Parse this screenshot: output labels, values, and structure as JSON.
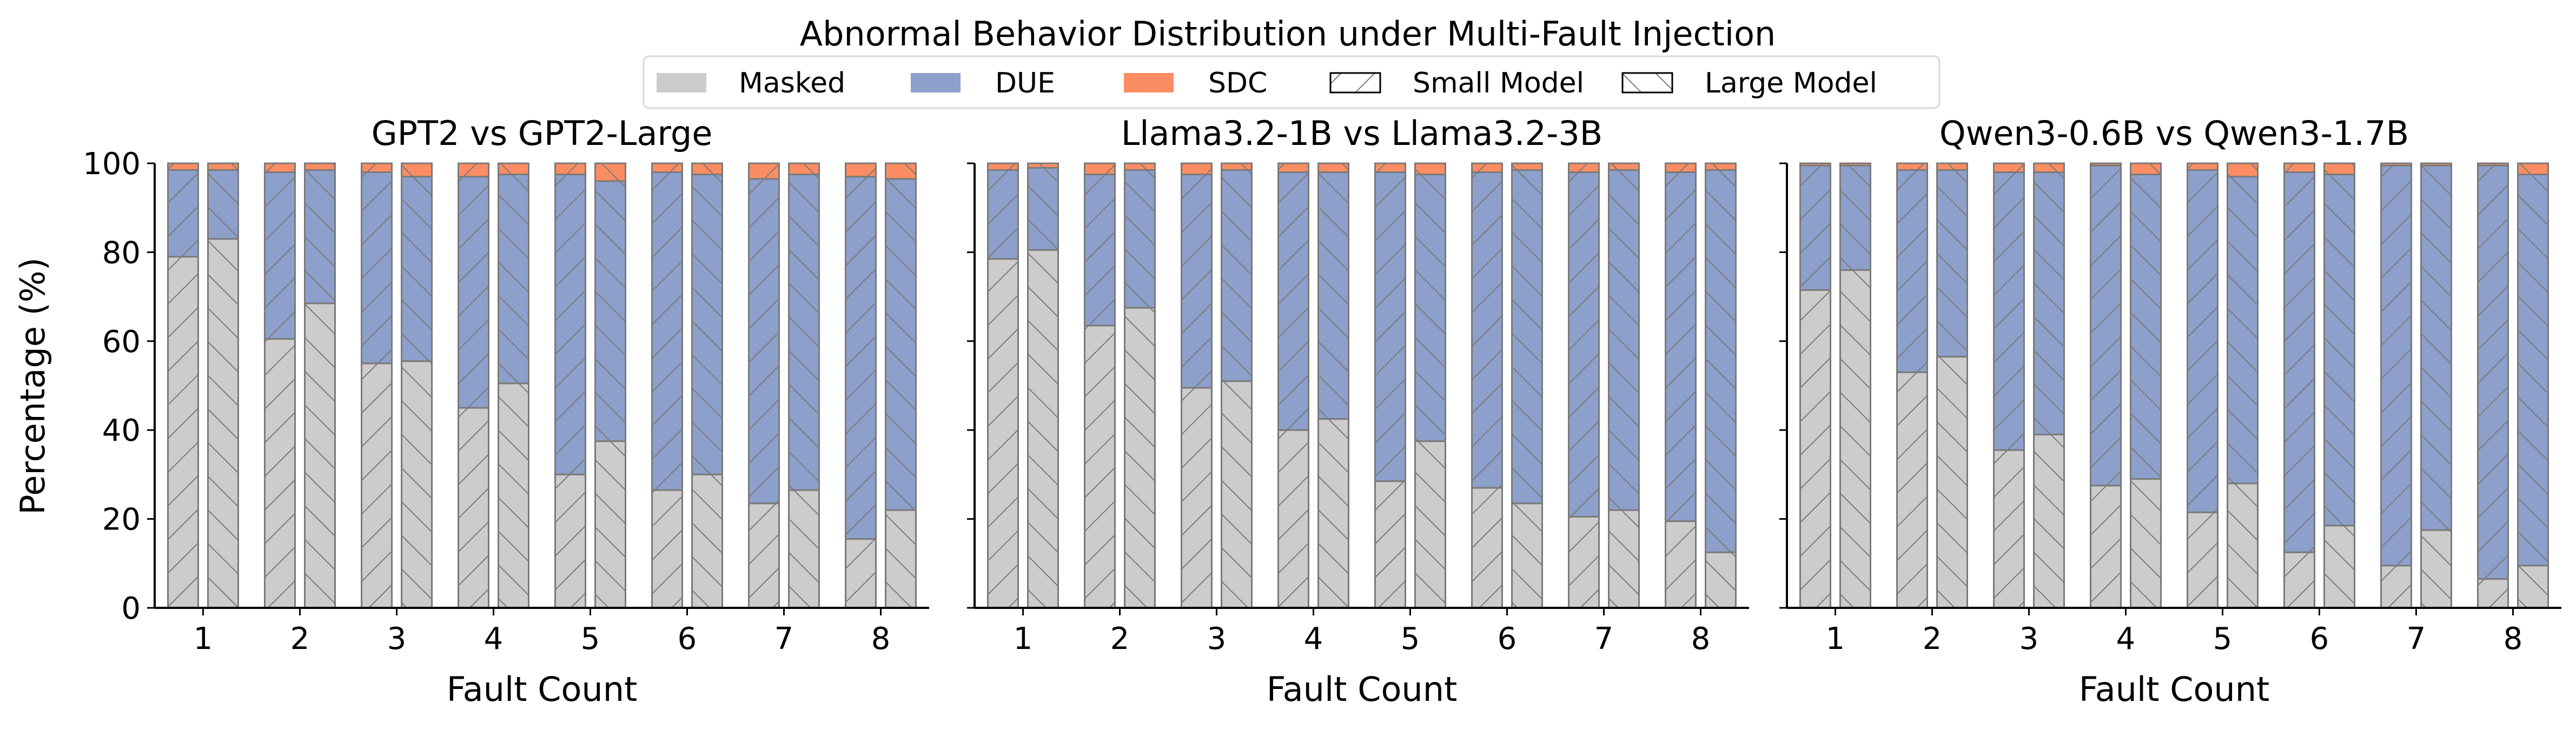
{
  "chart_data": {
    "type": "bar",
    "stacked": true,
    "grouped": true,
    "title": "Abnormal Behavior Distribution under Multi-Fault Injection",
    "ylabel": "Percentage (%)",
    "xlabel": "Fault Count",
    "ylim": [
      0,
      100
    ],
    "yticks": [
      0,
      20,
      40,
      60,
      80,
      100
    ],
    "categories": [
      "1",
      "2",
      "3",
      "4",
      "5",
      "6",
      "7",
      "8"
    ],
    "legend": {
      "position": "top-center",
      "entries": [
        {
          "label": "Masked",
          "kind": "color",
          "color": "#cccccc"
        },
        {
          "label": "DUE",
          "kind": "color",
          "color": "#8da0cb"
        },
        {
          "label": "SDC",
          "kind": "color",
          "color": "#fc8d62"
        },
        {
          "label": "Small Model",
          "kind": "hatch",
          "hatch": "forward"
        },
        {
          "label": "Large Model",
          "kind": "hatch",
          "hatch": "backward"
        }
      ]
    },
    "colors": {
      "masked": "#cccccc",
      "due": "#8da0cb",
      "sdc": "#fc8d62",
      "edge": "#7a7a7a",
      "hatch": "#7a7a7a"
    },
    "panels": [
      {
        "title": "GPT2 vs GPT2-Large",
        "small": {
          "masked": [
            79,
            60.5,
            55,
            45,
            30,
            26.5,
            23.5,
            15.5
          ],
          "due": [
            19.5,
            37.5,
            43,
            52,
            67.5,
            71.5,
            73,
            81.5
          ],
          "sdc": [
            1.5,
            2,
            2,
            3,
            2.5,
            2,
            3.5,
            3
          ]
        },
        "large": {
          "masked": [
            83,
            68.5,
            55.5,
            50.5,
            37.5,
            30,
            26.5,
            22
          ],
          "due": [
            15.5,
            30,
            41.5,
            47,
            58.5,
            67.5,
            71,
            74.5
          ],
          "sdc": [
            1.5,
            1.5,
            3,
            2.5,
            4,
            2.5,
            2.5,
            3.5
          ]
        }
      },
      {
        "title": "Llama3.2-1B vs Llama3.2-3B",
        "small": {
          "masked": [
            78.5,
            63.5,
            49.5,
            40,
            28.5,
            27,
            20.5,
            19.5
          ],
          "due": [
            20,
            34,
            48,
            58,
            69.5,
            71,
            77.5,
            78.5
          ],
          "sdc": [
            1.5,
            2.5,
            2.5,
            2,
            2,
            2,
            2,
            2
          ]
        },
        "large": {
          "masked": [
            80.5,
            67.5,
            51,
            42.5,
            37.5,
            23.5,
            22,
            12.5
          ],
          "due": [
            18.5,
            31,
            47.5,
            55.5,
            60,
            75,
            76.5,
            86
          ],
          "sdc": [
            1,
            1.5,
            1.5,
            2,
            2.5,
            1.5,
            1.5,
            1.5
          ]
        }
      },
      {
        "title": "Qwen3-0.6B vs Qwen3-1.7B",
        "small": {
          "masked": [
            71.5,
            53,
            35.5,
            27.5,
            21.5,
            12.5,
            9.5,
            6.5
          ],
          "due": [
            28,
            45.5,
            62.5,
            72,
            77,
            85.5,
            90,
            93
          ],
          "sdc": [
            0.5,
            1.5,
            2,
            0.5,
            1.5,
            2,
            0.5,
            0.5
          ]
        },
        "large": {
          "masked": [
            76,
            56.5,
            39,
            29,
            28,
            18.5,
            17.5,
            9.5
          ],
          "due": [
            23.5,
            42,
            59,
            68.5,
            69,
            79,
            82,
            88
          ],
          "sdc": [
            0.5,
            1.5,
            2,
            2.5,
            3,
            2.5,
            0.5,
            2.5
          ]
        }
      }
    ]
  }
}
